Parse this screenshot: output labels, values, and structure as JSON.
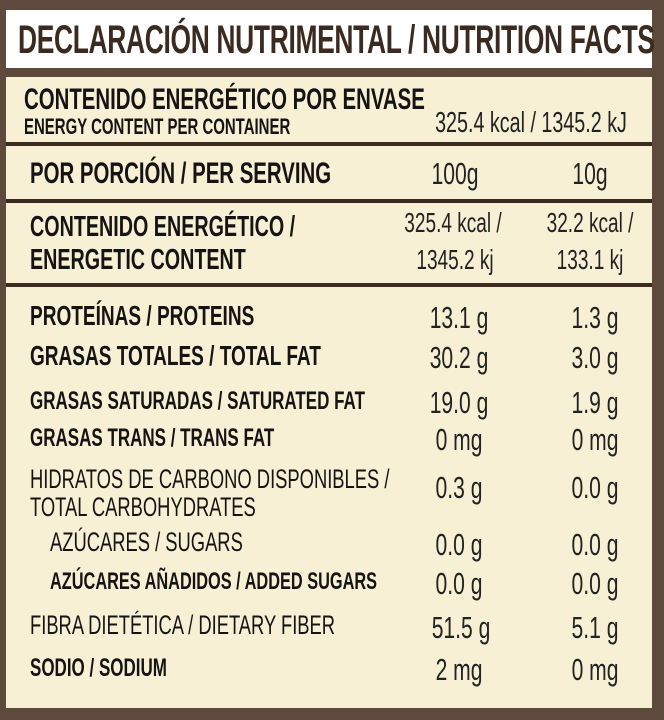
{
  "title": "DECLARACIÓN NUTRIMENTAL / NUTRITION FACTS",
  "energy_per_container": {
    "label_es": "CONTENIDO ENERGÉTICO POR ENVASE",
    "label_en": "ENERGY CONTENT PER CONTAINER",
    "value": "325.4 kcal / 1345.2 kJ"
  },
  "serving": {
    "label": "POR PORCIÓN / PER SERVING",
    "col1": "100g",
    "col2": "10g"
  },
  "energetic_content": {
    "label_line1": "CONTENIDO ENERGÉTICO /",
    "label_line2": "ENERGETIC CONTENT",
    "col1_line1": "325.4 kcal /",
    "col1_line2": "1345.2 kj",
    "col2_line1": "32.2 kcal /",
    "col2_line2": "133.1 kj"
  },
  "nutrients": [
    {
      "label": "PROTEÍNAS / PROTEINS",
      "col1": "13.1 g",
      "col2": "1.3 g"
    },
    {
      "label": "GRASAS TOTALES / TOTAL FAT",
      "col1": "30.2 g",
      "col2": "3.0 g"
    },
    {
      "label": "GRASAS SATURADAS / SATURATED FAT",
      "col1": "19.0 g",
      "col2": "1.9 g"
    },
    {
      "label": "GRASAS TRANS / TRANS FAT",
      "col1": "0 mg",
      "col2": "0 mg"
    },
    {
      "label": "HIDRATOS DE CARBONO DISPONIBLES /",
      "label2": "TOTAL CARBOHYDRATES",
      "col1": "0.3 g",
      "col2": "0.0 g"
    },
    {
      "label": "AZÚCARES / SUGARS",
      "col1": "0.0 g",
      "col2": "0.0 g"
    },
    {
      "label": "AZÚCARES AÑADIDOS / ADDED SUGARS",
      "col1": "0.0 g",
      "col2": "0.0 g"
    },
    {
      "label": "FIBRA DIETÉTICA / DIETARY FIBER",
      "col1": "51.5 g",
      "col2": "5.1 g"
    },
    {
      "label": "SODIO / SODIUM",
      "col1": "2 mg",
      "col2": "0 mg"
    }
  ],
  "colors": {
    "frame": "#5d4a3c",
    "panel": "#f7f0d5",
    "title_text": "#3b2a20"
  }
}
